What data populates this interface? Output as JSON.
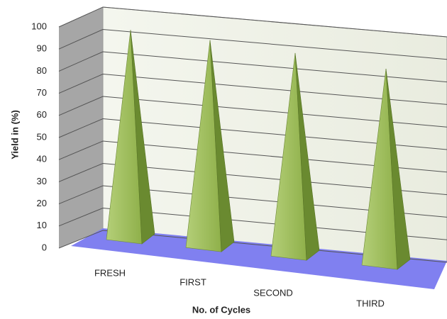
{
  "chart_data": {
    "type": "bar3d-pyramid",
    "x_label": "No. of Cycles",
    "y_label": "Yield in (%)",
    "categories": [
      "FRESH",
      "FIRST",
      "SECOND",
      "THIRD"
    ],
    "values": [
      96,
      95,
      93,
      90
    ],
    "color": "#9bbb59",
    "ylim": [
      0,
      100
    ],
    "yticks": [
      0,
      10,
      20,
      30,
      40,
      50,
      60,
      70,
      80,
      90,
      100
    ],
    "grid": true
  }
}
